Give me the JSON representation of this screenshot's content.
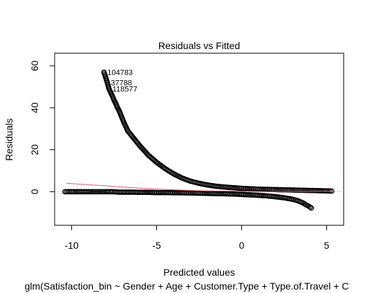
{
  "chart_data": {
    "type": "scatter",
    "title": "Residuals vs Fitted",
    "xlabel": "Predicted values",
    "ylabel": "Residuals",
    "subtitle": "glm(Satisfaction_bin ~ Gender + Age + Customer.Type + Type.of.Travel + C",
    "xlim": [
      -11.0,
      6.0
    ],
    "ylim": [
      -16.0,
      66.0
    ],
    "x_ticks": [
      -10,
      -5,
      0,
      5
    ],
    "y_ticks": [
      0,
      20,
      40,
      60
    ],
    "x_tick_labels": [
      "-10",
      "-5",
      "0",
      "5"
    ],
    "y_tick_labels": [
      "0",
      "20",
      "40",
      "60"
    ],
    "grid": false,
    "legend": "none",
    "reference_line_y": 0,
    "colors": {
      "points": "#000000",
      "smooth": "#DF536B",
      "refline": "#BEBEBE"
    },
    "series": [
      {
        "points": [
          [
            -8.1,
            57.0
          ],
          [
            -7.9,
            52.0
          ],
          [
            -7.8,
            49.0
          ],
          [
            -7.6,
            45.5
          ],
          [
            -7.5,
            43.5
          ],
          [
            -7.4,
            42.0
          ],
          [
            -7.35,
            41.0
          ],
          [
            -7.3,
            40.0
          ],
          [
            -7.2,
            38.5
          ],
          [
            -7.15,
            37.5
          ],
          [
            -7.1,
            36.5
          ],
          [
            -6.95,
            33.5
          ],
          [
            -6.9,
            32.5
          ],
          [
            -6.75,
            30.0
          ],
          [
            -6.7,
            29.0
          ],
          [
            -6.5,
            27.0
          ],
          [
            -6.2,
            24.0
          ],
          [
            -6.0,
            22.0
          ],
          [
            -5.5,
            17.5
          ],
          [
            -5.0,
            14.0
          ],
          [
            -4.5,
            11.0
          ],
          [
            -4.0,
            8.5
          ],
          [
            -3.5,
            6.5
          ],
          [
            -3.0,
            5.0
          ],
          [
            -2.5,
            4.0
          ],
          [
            -2.0,
            3.2
          ],
          [
            -1.5,
            2.6
          ],
          [
            -1.0,
            2.2
          ],
          [
            -0.5,
            1.9
          ],
          [
            0.0,
            1.6
          ],
          [
            0.5,
            1.4
          ],
          [
            1.0,
            1.2
          ],
          [
            1.5,
            1.1
          ],
          [
            2.0,
            1.0
          ],
          [
            2.5,
            0.9
          ],
          [
            3.0,
            0.8
          ],
          [
            3.5,
            0.7
          ],
          [
            4.0,
            0.6
          ],
          [
            4.5,
            0.5
          ],
          [
            5.0,
            0.4
          ],
          [
            5.3,
            0.3
          ],
          [
            -10.4,
            0.0
          ],
          [
            -10.2,
            0.0
          ],
          [
            -10.0,
            0.0
          ],
          [
            -9.5,
            0.0
          ],
          [
            -8.9,
            0.0
          ],
          [
            -8.6,
            0.0
          ],
          [
            -8.3,
            0.0
          ],
          [
            -8.0,
            0.0
          ],
          [
            -7.6,
            0.0
          ],
          [
            -7.2,
            -0.2
          ],
          [
            -6.8,
            -0.2
          ],
          [
            -6.4,
            -0.2
          ],
          [
            -6.0,
            -0.3
          ],
          [
            -5.5,
            -0.3
          ],
          [
            -5.0,
            -0.4
          ],
          [
            -4.5,
            -0.4
          ],
          [
            -4.0,
            -0.5
          ],
          [
            -3.5,
            -0.5
          ],
          [
            -3.0,
            -0.6
          ],
          [
            -2.5,
            -0.7
          ],
          [
            -2.0,
            -0.8
          ],
          [
            -1.5,
            -0.9
          ],
          [
            -1.0,
            -1.0
          ],
          [
            -0.5,
            -1.1
          ],
          [
            0.0,
            -1.3
          ],
          [
            0.5,
            -1.5
          ],
          [
            1.0,
            -1.7
          ],
          [
            1.5,
            -2.0
          ],
          [
            2.0,
            -2.4
          ],
          [
            2.5,
            -2.9
          ],
          [
            3.0,
            -3.6
          ],
          [
            3.3,
            -4.3
          ],
          [
            3.6,
            -5.3
          ],
          [
            3.8,
            -6.3
          ],
          [
            4.0,
            -7.2
          ],
          [
            4.1,
            -7.8
          ]
        ]
      }
    ],
    "smooth_line": [
      [
        -10.3,
        4.0
      ],
      [
        -9.0,
        3.3
      ],
      [
        -8.0,
        2.8
      ],
      [
        -7.0,
        2.2
      ],
      [
        -6.0,
        1.7
      ],
      [
        -5.0,
        1.3
      ],
      [
        -4.0,
        0.9
      ],
      [
        -3.0,
        0.6
      ],
      [
        -2.0,
        0.4
      ],
      [
        -1.0,
        0.3
      ],
      [
        0.0,
        0.2
      ],
      [
        1.0,
        0.1
      ],
      [
        2.0,
        0.1
      ],
      [
        3.0,
        0.1
      ],
      [
        4.0,
        0.1
      ],
      [
        5.3,
        0.2
      ]
    ],
    "annotations": [
      {
        "label": "104783",
        "x": -8.1,
        "y": 57.0
      },
      {
        "label": "37788",
        "x": -7.9,
        "y": 52.0
      },
      {
        "label": "118577",
        "x": -7.8,
        "y": 49.0
      }
    ]
  }
}
